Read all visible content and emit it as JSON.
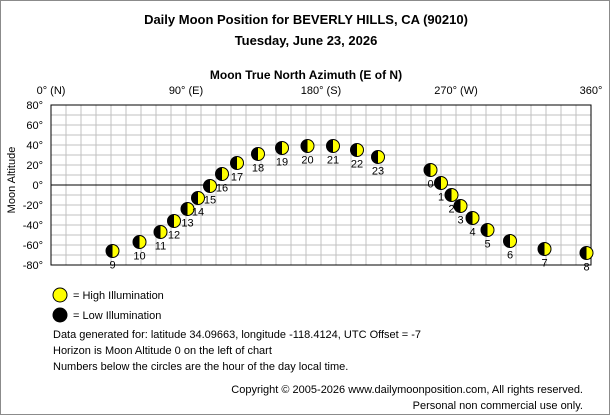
{
  "chart_data": {
    "type": "scatter",
    "title": "Daily Moon Position for BEVERLY HILLS, CA (90210)",
    "subtitle": "Tuesday, June 23, 2026",
    "xlabel": "Moon True North Azimuth (E of N)",
    "ylabel": "Moon Altitude",
    "xlim": [
      0,
      360
    ],
    "ylim": [
      -80,
      80
    ],
    "x_ticks": [
      {
        "value": 0,
        "label": "0° (N)"
      },
      {
        "value": 90,
        "label": "90° (E)"
      },
      {
        "value": 180,
        "label": "180° (S)"
      },
      {
        "value": 270,
        "label": "270° (W)"
      },
      {
        "value": 360,
        "label": "360°"
      }
    ],
    "y_ticks": [
      {
        "value": 80,
        "label": "80°"
      },
      {
        "value": 60,
        "label": "60°"
      },
      {
        "value": 40,
        "label": "40°"
      },
      {
        "value": 20,
        "label": "20°"
      },
      {
        "value": 0,
        "label": "0°"
      },
      {
        "value": -20,
        "label": "-20°"
      },
      {
        "value": -40,
        "label": "-40°"
      },
      {
        "value": -60,
        "label": "-60°"
      },
      {
        "value": -80,
        "label": "-80°"
      }
    ],
    "grid": true,
    "horizon_altitude": 0,
    "series": [
      {
        "name": "Moon position by hour",
        "points": [
          {
            "hour": "9",
            "x": 41,
            "y": -66
          },
          {
            "hour": "10",
            "x": 59,
            "y": -57
          },
          {
            "hour": "11",
            "x": 73,
            "y": -47
          },
          {
            "hour": "12",
            "x": 82,
            "y": -36
          },
          {
            "hour": "13",
            "x": 91,
            "y": -24
          },
          {
            "hour": "14",
            "x": 98,
            "y": -13
          },
          {
            "hour": "15",
            "x": 106,
            "y": -1
          },
          {
            "hour": "16",
            "x": 114,
            "y": 11
          },
          {
            "hour": "17",
            "x": 124,
            "y": 22
          },
          {
            "hour": "18",
            "x": 138,
            "y": 31
          },
          {
            "hour": "19",
            "x": 154,
            "y": 37
          },
          {
            "hour": "20",
            "x": 171,
            "y": 39
          },
          {
            "hour": "21",
            "x": 188,
            "y": 39
          },
          {
            "hour": "22",
            "x": 204,
            "y": 35
          },
          {
            "hour": "23",
            "x": 218,
            "y": 28
          },
          {
            "hour": "0",
            "x": 253,
            "y": 15
          },
          {
            "hour": "1",
            "x": 260,
            "y": 2
          },
          {
            "hour": "2",
            "x": 267,
            "y": -10
          },
          {
            "hour": "3",
            "x": 273,
            "y": -21
          },
          {
            "hour": "4",
            "x": 281,
            "y": -33
          },
          {
            "hour": "5",
            "x": 291,
            "y": -45
          },
          {
            "hour": "6",
            "x": 306,
            "y": -56
          },
          {
            "hour": "7",
            "x": 329,
            "y": -64
          },
          {
            "hour": "8",
            "x": 357,
            "y": -68
          }
        ]
      }
    ],
    "legend": [
      {
        "label": "= High Illumination",
        "color": "#ffff00"
      },
      {
        "label": "= Low Illumination",
        "color": "#000000"
      }
    ],
    "legend_placement": "bottom-left"
  },
  "info_lines": [
    "Data generated for: latitude 34.09663, longitude -118.4124, UTC Offset = -7",
    "Horizon is Moon Altitude 0 on the left of chart",
    "Numbers below the circles are the hour of the day local time."
  ],
  "copyright": "Copyright © 2005-2026 www.dailymoonposition.com, All rights reserved.",
  "license": "Personal non commercial use only.",
  "colors": {
    "grid": "#c0c0c0",
    "axis": "#000000",
    "high_illumination": "#ffff00",
    "low_illumination": "#000000",
    "frame": "#8b8b8b"
  }
}
